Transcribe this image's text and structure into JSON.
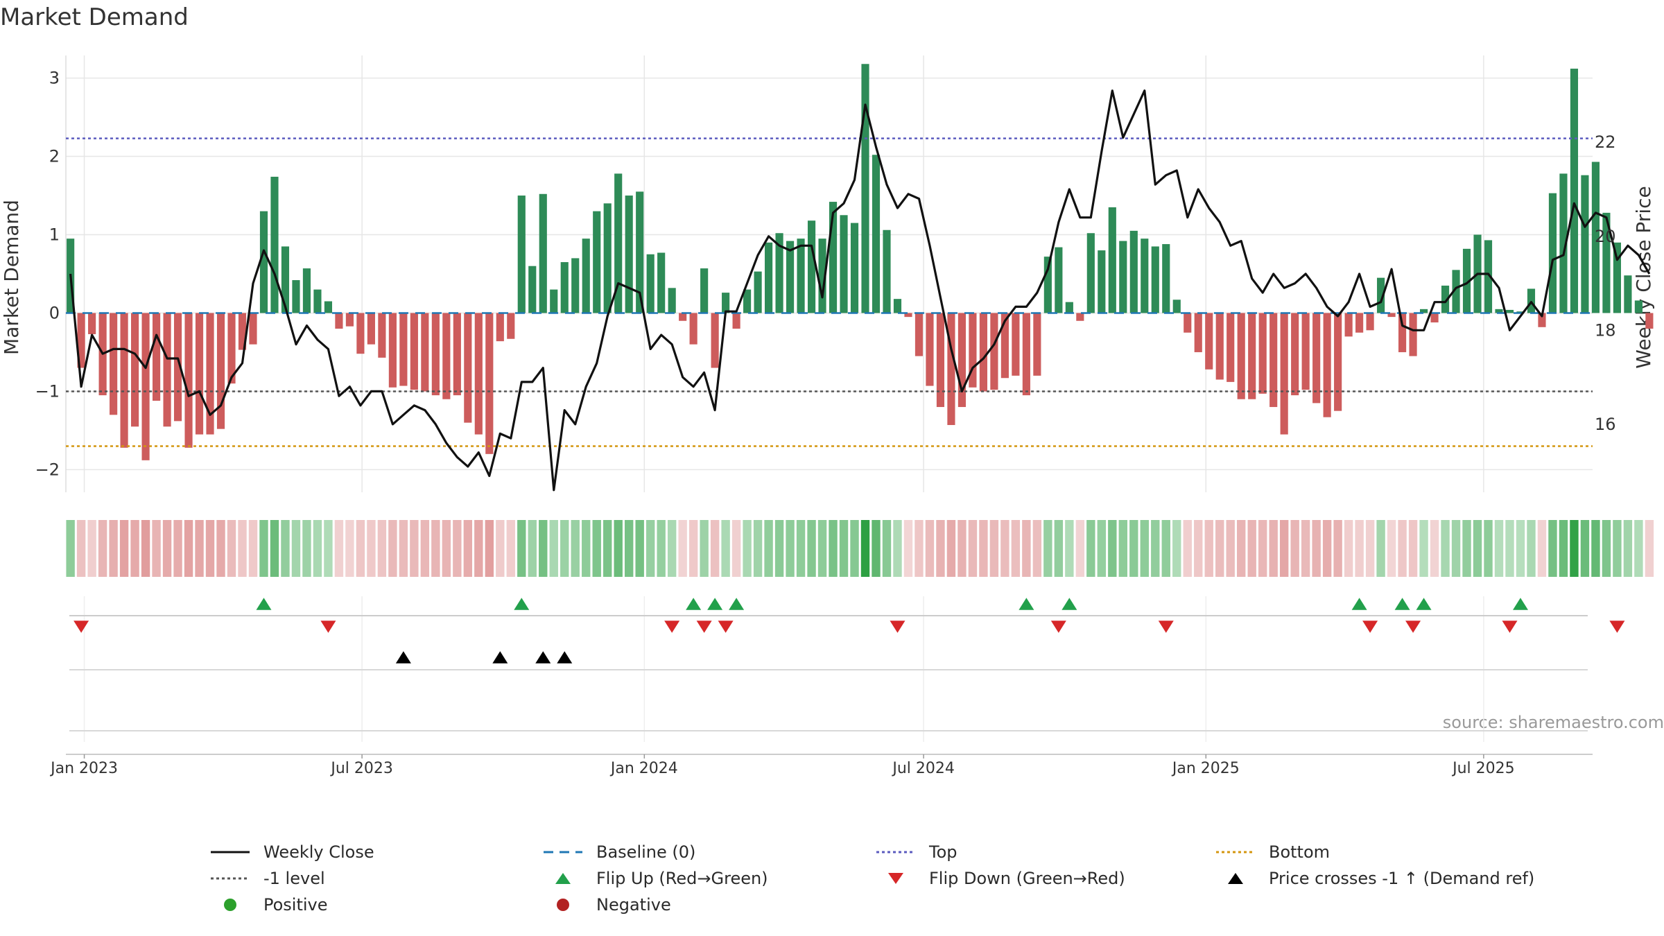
{
  "chart_data": {
    "type": "bar+line",
    "title": "Market Demand",
    "ylabel_left": "Market Demand",
    "ylabel_right": "Weekly Close Price",
    "ylim_left": [
      -2.2,
      3.2
    ],
    "ylim_right": [
      14.7,
      23.7
    ],
    "left_ticks": [
      -2,
      -1,
      0,
      1,
      2,
      3
    ],
    "right_ticks": [
      16,
      18,
      20,
      22
    ],
    "x_start": "2022-12-20",
    "x_end": "2025-09-10",
    "x_ticks": [
      {
        "label": "Jan 2023",
        "date": "2023-01-01"
      },
      {
        "label": "Jul 2023",
        "date": "2023-07-01"
      },
      {
        "label": "Jan 2024",
        "date": "2024-01-01"
      },
      {
        "label": "Jul 2024",
        "date": "2024-07-01"
      },
      {
        "label": "Jan 2025",
        "date": "2025-01-01"
      },
      {
        "label": "Jul 2025",
        "date": "2025-07-01"
      }
    ],
    "first_week": "2022-12-23",
    "reference_lines": {
      "top": 2.23,
      "minus_one": -1.0,
      "bottom": -1.7,
      "baseline": 0
    },
    "demand": [
      0.95,
      -0.7,
      -0.27,
      -1.05,
      -1.3,
      -1.72,
      -1.45,
      -1.88,
      -1.12,
      -1.45,
      -1.38,
      -1.72,
      -1.55,
      -1.55,
      -1.48,
      -0.9,
      -0.47,
      -0.4,
      1.3,
      1.74,
      0.85,
      0.42,
      0.57,
      0.3,
      0.15,
      -0.2,
      -0.17,
      -0.52,
      -0.4,
      -0.57,
      -0.95,
      -0.93,
      -0.98,
      -1.0,
      -1.05,
      -1.1,
      -1.05,
      -1.4,
      -1.55,
      -1.8,
      -0.36,
      -0.33,
      1.5,
      0.6,
      1.52,
      0.3,
      0.65,
      0.7,
      0.95,
      1.3,
      1.4,
      1.78,
      1.5,
      1.55,
      0.75,
      0.77,
      0.32,
      -0.1,
      -0.4,
      0.57,
      -0.7,
      0.26,
      -0.2,
      0.3,
      0.53,
      0.9,
      1.02,
      0.92,
      0.95,
      1.18,
      0.95,
      1.42,
      1.25,
      1.15,
      3.18,
      2.02,
      1.06,
      0.18,
      -0.05,
      -0.55,
      -0.93,
      -1.2,
      -1.43,
      -1.2,
      -0.95,
      -1.0,
      -0.98,
      -0.83,
      -0.8,
      -1.05,
      -0.8,
      0.72,
      0.84,
      0.14,
      -0.1,
      1.02,
      0.8,
      1.35,
      0.92,
      1.05,
      0.95,
      0.85,
      0.88,
      0.17,
      -0.25,
      -0.5,
      -0.72,
      -0.85,
      -0.88,
      -1.1,
      -1.1,
      -1.03,
      -1.2,
      -1.55,
      -1.05,
      -0.98,
      -1.15,
      -1.33,
      -1.25,
      -0.3,
      -0.25,
      -0.22,
      0.45,
      -0.05,
      -0.5,
      -0.55,
      0.05,
      -0.12,
      0.35,
      0.55,
      0.82,
      1.0,
      0.93,
      0.05,
      0.04,
      0.02,
      0.31,
      -0.18,
      1.53,
      1.78,
      3.12,
      1.76,
      1.93,
      1.28,
      0.9,
      0.48,
      0.16,
      -0.2
    ],
    "price": [
      19.2,
      16.8,
      17.9,
      17.5,
      17.6,
      17.6,
      17.5,
      17.2,
      17.9,
      17.4,
      17.4,
      16.6,
      16.7,
      16.2,
      16.4,
      17.0,
      17.3,
      19.0,
      19.7,
      19.2,
      18.5,
      17.7,
      18.1,
      17.8,
      17.6,
      16.6,
      16.8,
      16.4,
      16.7,
      16.7,
      16.0,
      16.2,
      16.4,
      16.3,
      16.0,
      15.6,
      15.3,
      15.1,
      15.4,
      14.9,
      15.8,
      15.7,
      16.9,
      16.9,
      17.2,
      14.6,
      16.3,
      16.0,
      16.8,
      17.3,
      18.3,
      19.0,
      18.9,
      18.8,
      17.6,
      17.9,
      17.7,
      17.0,
      16.8,
      17.1,
      16.3,
      18.4,
      18.4,
      19.0,
      19.6,
      20.0,
      19.8,
      19.7,
      19.8,
      19.8,
      18.7,
      20.5,
      20.7,
      21.2,
      22.8,
      21.9,
      21.1,
      20.6,
      20.9,
      20.8,
      19.8,
      18.7,
      17.6,
      16.7,
      17.2,
      17.4,
      17.7,
      18.2,
      18.5,
      18.5,
      18.8,
      19.3,
      20.3,
      21.0,
      20.4,
      20.4,
      21.8,
      23.1,
      22.1,
      22.6,
      23.1,
      21.1,
      21.3,
      21.4,
      20.4,
      21.0,
      20.6,
      20.3,
      19.8,
      19.9,
      19.1,
      18.8,
      19.2,
      18.9,
      19.0,
      19.2,
      18.9,
      18.5,
      18.3,
      18.6,
      19.2,
      18.5,
      18.6,
      19.3,
      18.1,
      18.0,
      18.0,
      18.6,
      18.6,
      18.9,
      19.0,
      19.2,
      19.2,
      18.9,
      18.0,
      18.3,
      18.6,
      18.3,
      19.5,
      19.6,
      20.7,
      20.2,
      20.5,
      20.4,
      19.5,
      19.8,
      19.6,
      19.2
    ],
    "flip_up_weeks": [
      18,
      42,
      58,
      60,
      62,
      89,
      93,
      120,
      124,
      126,
      135
    ],
    "flip_down_weeks": [
      1,
      24,
      56,
      59,
      61,
      77,
      92,
      102,
      121,
      125,
      134,
      144
    ],
    "price_cross_weeks": [
      31,
      40,
      44,
      46
    ],
    "source_note": "source: sharemaestro.com"
  },
  "legend": [
    {
      "label": "Weekly Close",
      "symbol": "solid-line",
      "color": "#111111"
    },
    {
      "label": "Baseline (0)",
      "symbol": "dashed-line",
      "color": "#1f77b4"
    },
    {
      "label": "Top",
      "symbol": "dotted-line",
      "color": "#5b5bbf"
    },
    {
      "label": "Bottom",
      "symbol": "dotted-line",
      "color": "#d4960f"
    },
    {
      "label": "-1 level",
      "symbol": "dotted-line",
      "color": "#555555"
    },
    {
      "label": "Flip Up (Red→Green)",
      "symbol": "triangle-up",
      "color": "#22a04b"
    },
    {
      "label": "Flip Down (Green→Red)",
      "symbol": "triangle-down",
      "color": "#d62728"
    },
    {
      "label": "Price crosses -1 ↑ (Demand ref)",
      "symbol": "triangle-up",
      "color": "#000000"
    },
    {
      "label": "Positive",
      "symbol": "circle",
      "color": "#2ca02c"
    },
    {
      "label": "Negative",
      "symbol": "circle",
      "color": "#b22222"
    }
  ],
  "colors": {
    "positive_bar": "#2e8b57",
    "negative_bar": "#cd5c5c",
    "price_line": "#111111",
    "grid": "#e6e6e6"
  }
}
